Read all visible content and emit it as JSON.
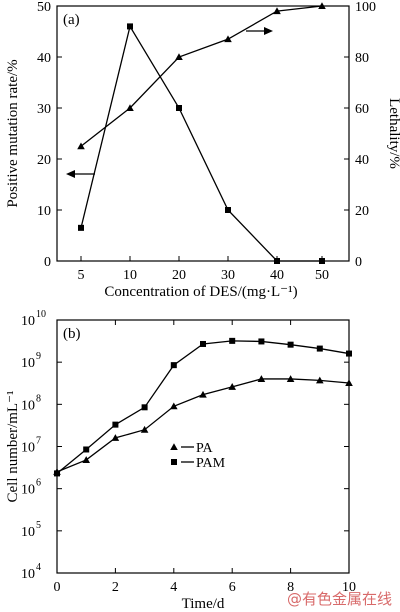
{
  "colors": {
    "ink": "#000000",
    "background": "#ffffff",
    "watermark": "#d86a6a"
  },
  "watermark": "@有色金属在线",
  "chart_data": [
    {
      "type": "line",
      "panel_label": "(a)",
      "xlabel": "Concentration of DES/(mg·L⁻¹)",
      "ylabel_left": "Positive mutation rate/%",
      "ylabel_right": "Lethality/%",
      "categories": [
        "5",
        "10",
        "20",
        "30",
        "40",
        "50"
      ],
      "y_left": {
        "lim": [
          0,
          50
        ],
        "ticks": [
          "0",
          "10",
          "20",
          "30",
          "40",
          "50"
        ]
      },
      "y_right": {
        "lim": [
          0,
          100
        ],
        "ticks": [
          "0",
          "20",
          "40",
          "60",
          "80",
          "100"
        ]
      },
      "series": [
        {
          "marker": "triangle",
          "axis": "right",
          "values": [
            45,
            60,
            80,
            87,
            98,
            100
          ]
        },
        {
          "marker": "square",
          "axis": "left",
          "values": [
            6.5,
            46,
            30,
            10,
            0,
            0
          ]
        }
      ],
      "annotations": [
        {
          "type": "arrow",
          "points_to": "right-axis",
          "near_category": "30"
        },
        {
          "type": "arrow",
          "points_to": "left-axis",
          "near_category": "5"
        }
      ]
    },
    {
      "type": "line",
      "panel_label": "(b)",
      "xlabel": "Time/d",
      "ylabel": "Cell number/mL⁻¹",
      "yscale": "log",
      "xlim": [
        0,
        10
      ],
      "ylim_exponent": [
        4,
        10
      ],
      "x_ticks": [
        "0",
        "2",
        "4",
        "6",
        "8",
        "10"
      ],
      "y_ticks": [
        {
          "base": "10",
          "exp": "4"
        },
        {
          "base": "10",
          "exp": "5"
        },
        {
          "base": "10",
          "exp": "6"
        },
        {
          "base": "10",
          "exp": "7"
        },
        {
          "base": "10",
          "exp": "8"
        },
        {
          "base": "10",
          "exp": "9"
        },
        {
          "base": "10",
          "exp": "10"
        }
      ],
      "legend_position": "center-left",
      "series": [
        {
          "name": "PA",
          "marker": "triangle",
          "x": [
            0,
            1,
            2,
            3,
            4,
            5,
            6,
            7,
            8,
            9,
            10
          ],
          "y": [
            2500000,
            4800000,
            16000000,
            25000000,
            90000000,
            170000000,
            260000000,
            400000000,
            400000000,
            370000000,
            320000000
          ]
        },
        {
          "name": "PAM",
          "marker": "square",
          "x": [
            0,
            1,
            2,
            3,
            4,
            5,
            6,
            7,
            8,
            9,
            10
          ],
          "y": [
            2300000,
            8500000,
            33000000,
            85000000,
            850000000,
            2700000000,
            3200000000,
            3100000000,
            2600000000,
            2100000000,
            1600000000
          ]
        }
      ]
    }
  ]
}
